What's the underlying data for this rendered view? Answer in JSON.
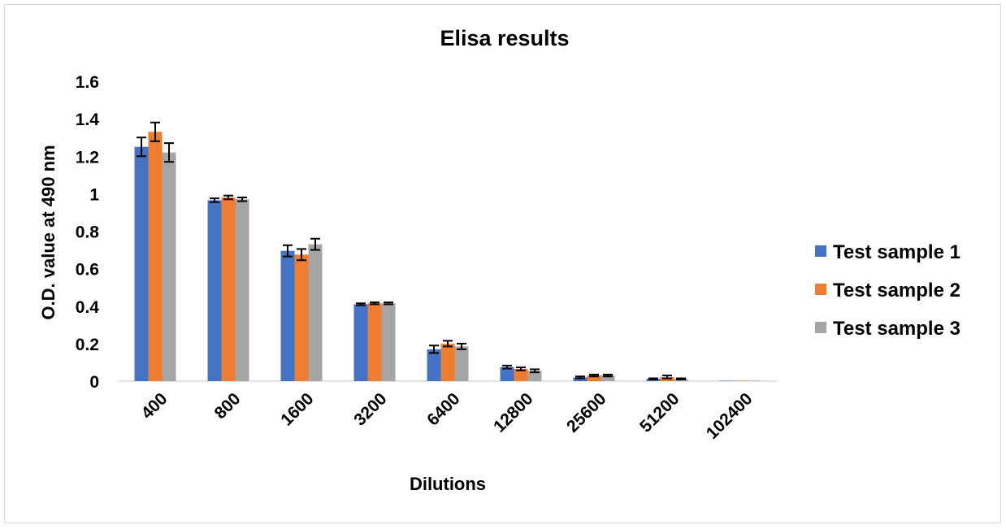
{
  "chart_data": {
    "type": "bar",
    "title": "Elisa results",
    "xlabel": "Dilutions",
    "ylabel": "O.D. value at 490 nm",
    "ylim": [
      0,
      1.6
    ],
    "yticks": [
      "0",
      "0.2",
      "0.4",
      "0.6",
      "0.8",
      "1",
      "1.2",
      "1.4",
      "1.6"
    ],
    "grid": false,
    "legend_position": "right",
    "categories": [
      "400",
      "800",
      "1600",
      "3200",
      "6400",
      "12800",
      "25600",
      "51200",
      "102400"
    ],
    "series": [
      {
        "name": "Test sample 1",
        "color": "#4472c4",
        "values": [
          1.25,
          0.965,
          0.695,
          0.41,
          0.17,
          0.075,
          0.02,
          0.012,
          0.002
        ],
        "errors": [
          0.05,
          0.01,
          0.03,
          0.005,
          0.02,
          0.008,
          0.005,
          0.003,
          0.001
        ]
      },
      {
        "name": "Test sample 2",
        "color": "#ed7d31",
        "values": [
          1.33,
          0.98,
          0.675,
          0.415,
          0.2,
          0.065,
          0.03,
          0.022,
          0.002
        ],
        "errors": [
          0.05,
          0.01,
          0.03,
          0.005,
          0.015,
          0.008,
          0.005,
          0.008,
          0.001
        ]
      },
      {
        "name": "Test sample 3",
        "color": "#a5a5a5",
        "values": [
          1.22,
          0.97,
          0.73,
          0.415,
          0.185,
          0.055,
          0.03,
          0.012,
          0.002
        ],
        "errors": [
          0.05,
          0.01,
          0.03,
          0.005,
          0.015,
          0.008,
          0.005,
          0.003,
          0.001
        ]
      }
    ]
  }
}
